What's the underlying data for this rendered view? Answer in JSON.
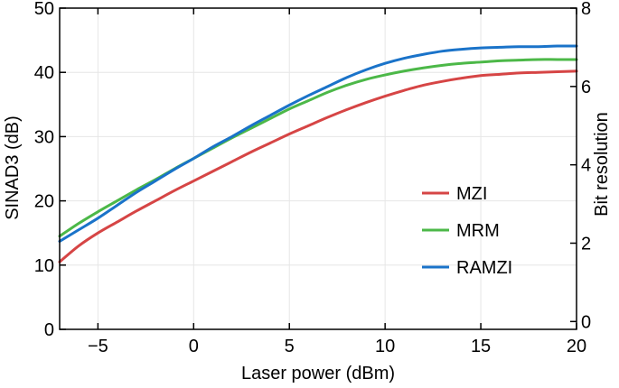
{
  "chart_data": {
    "type": "line",
    "xlabel": "Laser power (dBm)",
    "ylabel": "SINAD3 (dB)",
    "y2label": "Bit resolution",
    "xlim": [
      -7,
      20
    ],
    "ylim": [
      0,
      50
    ],
    "y2lim": [
      -0.2,
      8
    ],
    "xticks": [
      -5,
      0,
      5,
      10,
      15,
      20
    ],
    "xtick_labels": [
      "−5",
      "0",
      "5",
      "10",
      "15",
      "20"
    ],
    "yticks": [
      0,
      10,
      20,
      30,
      40,
      50
    ],
    "ytick_labels": [
      "0",
      "10",
      "20",
      "30",
      "40",
      "50"
    ],
    "y2ticks": [
      0,
      2,
      4,
      6,
      8
    ],
    "y2tick_labels": [
      "0",
      "2",
      "4",
      "6",
      "8"
    ],
    "grid": true,
    "legend_position": "center-right",
    "series": [
      {
        "name": "MZI",
        "color": "#d64545",
        "x": [
          -7,
          -6,
          -5,
          -4,
          -3,
          -2,
          -1,
          0,
          1,
          2,
          3,
          4,
          5,
          6,
          7,
          8,
          9,
          10,
          11,
          12,
          13,
          14,
          15,
          16,
          17,
          18,
          19,
          20
        ],
        "y": [
          10.5,
          13.0,
          15.0,
          16.7,
          18.4,
          20.0,
          21.6,
          23.1,
          24.6,
          26.1,
          27.6,
          29.0,
          30.4,
          31.7,
          33.0,
          34.2,
          35.3,
          36.3,
          37.2,
          38.0,
          38.6,
          39.1,
          39.5,
          39.7,
          39.9,
          40.0,
          40.1,
          40.2
        ]
      },
      {
        "name": "MRM",
        "color": "#4cb848",
        "x": [
          -7,
          -6,
          -5,
          -4,
          -3,
          -2,
          -1,
          0,
          1,
          2,
          3,
          4,
          5,
          6,
          7,
          8,
          9,
          10,
          11,
          12,
          13,
          14,
          15,
          16,
          17,
          18,
          19,
          20
        ],
        "y": [
          14.5,
          16.5,
          18.3,
          20.0,
          21.7,
          23.3,
          25.0,
          26.6,
          28.2,
          29.8,
          31.3,
          32.8,
          34.3,
          35.6,
          36.9,
          38.0,
          38.9,
          39.6,
          40.2,
          40.7,
          41.1,
          41.4,
          41.6,
          41.8,
          41.9,
          42.0,
          42.0,
          42.0
        ]
      },
      {
        "name": "RAMZI",
        "color": "#1a73c9",
        "x": [
          -7,
          -6,
          -5,
          -4,
          -3,
          -2,
          -1,
          0,
          1,
          2,
          3,
          4,
          5,
          6,
          7,
          8,
          9,
          10,
          11,
          12,
          13,
          14,
          15,
          16,
          17,
          18,
          19,
          20
        ],
        "y": [
          13.7,
          15.5,
          17.3,
          19.3,
          21.3,
          23.1,
          24.9,
          26.6,
          28.4,
          30.0,
          31.7,
          33.3,
          34.9,
          36.4,
          37.8,
          39.2,
          40.4,
          41.4,
          42.2,
          42.8,
          43.3,
          43.6,
          43.8,
          43.9,
          44.0,
          44.0,
          44.1,
          44.1
        ]
      }
    ]
  }
}
